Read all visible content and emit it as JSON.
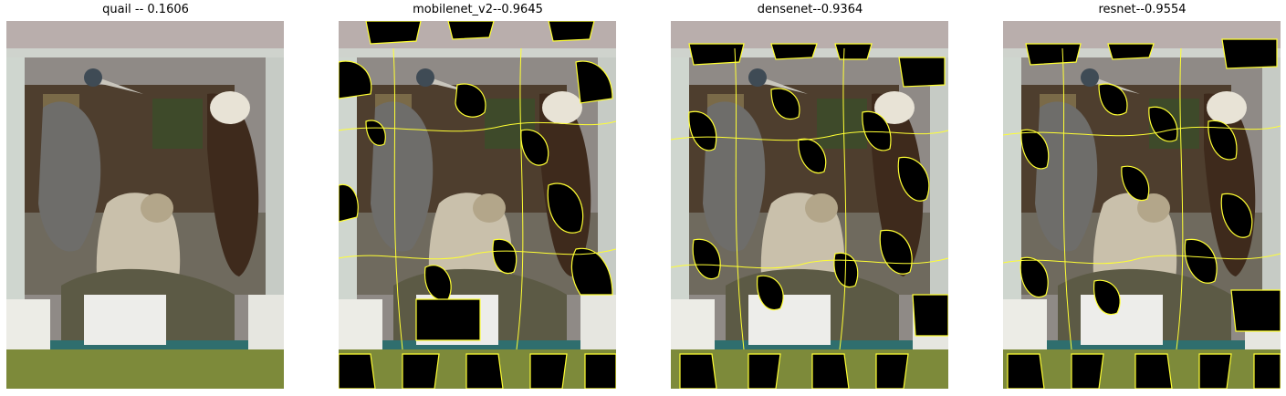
{
  "panels": [
    {
      "title": "quail -- 0.1606"
    },
    {
      "title": "mobilenet_v2--0.9645"
    },
    {
      "title": "densenet--0.9364"
    },
    {
      "title": "resnet--0.9554"
    }
  ],
  "colors": {
    "boundary": "#ffff33",
    "masked": "#000000",
    "floor": "#7d8a3a",
    "wall": "#b0a9a8",
    "frame": "#d9dcd7"
  }
}
